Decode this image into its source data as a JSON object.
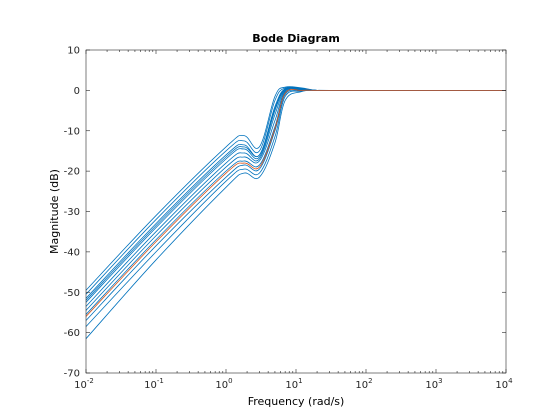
{
  "chart_data": {
    "type": "line",
    "title": "Bode Diagram",
    "xlabel": "Frequency  (rad/s)",
    "ylabel": "Magnitude (dB)",
    "xscale": "log",
    "xlim": [
      0.01,
      10000
    ],
    "ylim": [
      -70,
      10
    ],
    "grid": false,
    "legend": "none",
    "x_tick_labels": [
      {
        "base": "10",
        "exp": "-2"
      },
      {
        "base": "10",
        "exp": "-1"
      },
      {
        "base": "10",
        "exp": "0"
      },
      {
        "base": "10",
        "exp": "1"
      },
      {
        "base": "10",
        "exp": "2"
      },
      {
        "base": "10",
        "exp": "3"
      },
      {
        "base": "10",
        "exp": "4"
      }
    ],
    "y_tick_labels": [
      "10",
      "0",
      "-10",
      "-20",
      "-30",
      "-40",
      "-50",
      "-60",
      "-70"
    ],
    "colors": {
      "ensemble": "#0072BD",
      "nominal": "#D95319"
    },
    "series": [
      {
        "x": [
          0.01,
          0.1,
          1,
          1.8,
          3,
          5,
          7,
          12,
          20,
          45,
          10000
        ],
        "y": [
          -49.5,
          -31,
          -14,
          -11.2,
          -14,
          -1.5,
          0.8,
          0.6,
          0,
          0,
          0
        ]
      },
      {
        "x": [
          0.01,
          0.1,
          1,
          1.8,
          3,
          5,
          7,
          12,
          20,
          45,
          10000
        ],
        "y": [
          -50.5,
          -32,
          -15,
          -12.5,
          -15,
          -2.5,
          0.6,
          0.5,
          0,
          0,
          0
        ]
      },
      {
        "x": [
          0.01,
          0.1,
          1,
          1.8,
          3,
          5,
          7,
          12,
          20,
          45,
          10000
        ],
        "y": [
          -51.5,
          -33,
          -16,
          -13.5,
          -16,
          -4,
          0.4,
          0.4,
          0,
          0,
          0
        ]
      },
      {
        "x": [
          0.01,
          0.1,
          1,
          1.8,
          3,
          5,
          7,
          12,
          20,
          45,
          10000
        ],
        "y": [
          -52.5,
          -34,
          -17,
          -14.5,
          -16.5,
          -5,
          0.2,
          0.3,
          0,
          0,
          0
        ]
      },
      {
        "x": [
          0.01,
          0.1,
          1,
          1.8,
          3,
          5,
          7,
          12,
          20,
          45,
          10000
        ],
        "y": [
          -53.5,
          -35,
          -18,
          -15.5,
          -17,
          -6,
          0,
          0.2,
          0,
          0,
          0
        ]
      },
      {
        "x": [
          0.01,
          0.1,
          1,
          1.8,
          3,
          5,
          7,
          12,
          20,
          45,
          10000
        ],
        "y": [
          -54.5,
          -36,
          -19,
          -16.5,
          -17.5,
          -7.5,
          -0.2,
          0.1,
          0,
          0,
          0
        ]
      },
      {
        "x": [
          0.01,
          0.1,
          1,
          1.8,
          3,
          5,
          7,
          12,
          20,
          45,
          10000
        ],
        "y": [
          -55.5,
          -37,
          -20,
          -17.5,
          -18.5,
          -9,
          -0.5,
          0,
          0,
          0,
          0
        ]
      },
      {
        "x": [
          0.01,
          0.1,
          1,
          1.8,
          3,
          5,
          7,
          12,
          20,
          45,
          10000
        ],
        "y": [
          -57,
          -38.5,
          -21.5,
          -18.5,
          -19.5,
          -10,
          -1,
          -0.1,
          0,
          0,
          0
        ]
      },
      {
        "x": [
          0.01,
          0.1,
          1,
          1.8,
          3,
          5,
          7,
          12,
          20,
          45,
          10000
        ],
        "y": [
          -58.5,
          -40,
          -22.5,
          -19.5,
          -20.5,
          -11.5,
          -1.5,
          -0.2,
          0,
          0,
          0
        ]
      },
      {
        "x": [
          0.01,
          0.1,
          1,
          1.8,
          3,
          5,
          7,
          12,
          20,
          45,
          10000
        ],
        "y": [
          -61.5,
          -42,
          -24,
          -20.5,
          -21.5,
          -13,
          -2.5,
          -0.3,
          0,
          0,
          0
        ]
      },
      {
        "x": [
          0.01,
          0.1,
          1,
          1.8,
          3,
          5,
          7,
          12,
          20,
          45,
          10000
        ],
        "y": [
          -52,
          -33.5,
          -16.5,
          -14,
          -16,
          -4.5,
          0.3,
          0.3,
          0,
          0,
          0
        ]
      },
      {
        "x": [
          0.01,
          0.1,
          1,
          1.8,
          3,
          5,
          7,
          12,
          20,
          45,
          10000
        ],
        "y": [
          -56,
          -37.5,
          -20.5,
          -18,
          -19,
          -9.5,
          -0.7,
          0,
          0,
          0,
          0
        ],
        "nominal": true
      }
    ]
  }
}
